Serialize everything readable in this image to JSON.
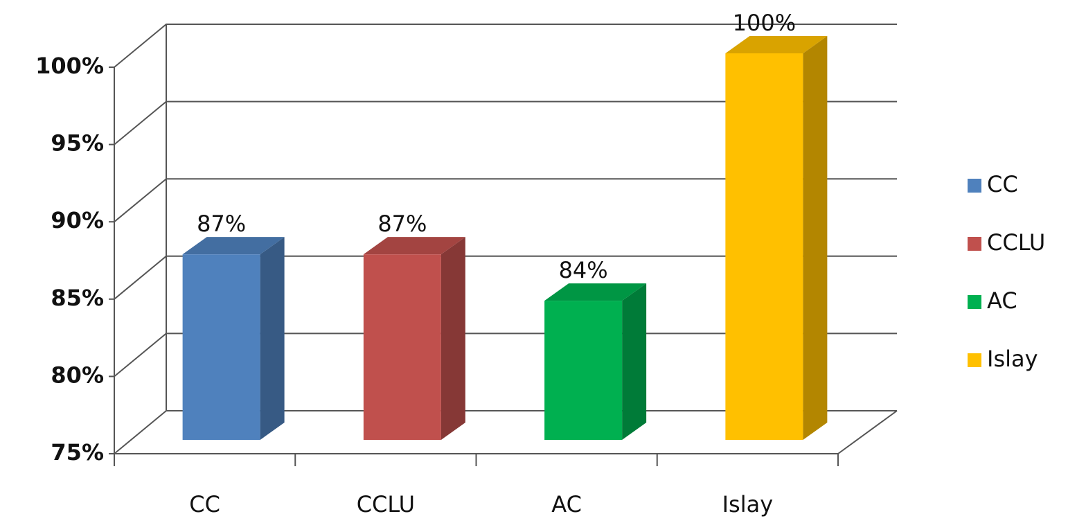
{
  "chart_data": {
    "type": "bar3d",
    "categories": [
      "CC",
      "CCLU",
      "AC",
      "Islay"
    ],
    "values": [
      87,
      87,
      84,
      100
    ],
    "value_labels": [
      "87%",
      "87%",
      "84%",
      "100%"
    ],
    "colors": [
      "#4f81bd",
      "#c0504d",
      "#00b050",
      "#ffc000"
    ],
    "ylim": [
      75,
      100
    ],
    "yticks": [
      {
        "value": 75,
        "label": "75%"
      },
      {
        "value": 80,
        "label": "80%"
      },
      {
        "value": 85,
        "label": "85%"
      },
      {
        "value": 90,
        "label": "90%"
      },
      {
        "value": 95,
        "label": "95%"
      },
      {
        "value": 100,
        "label": "100%"
      }
    ],
    "grid": true,
    "legend": "right"
  }
}
